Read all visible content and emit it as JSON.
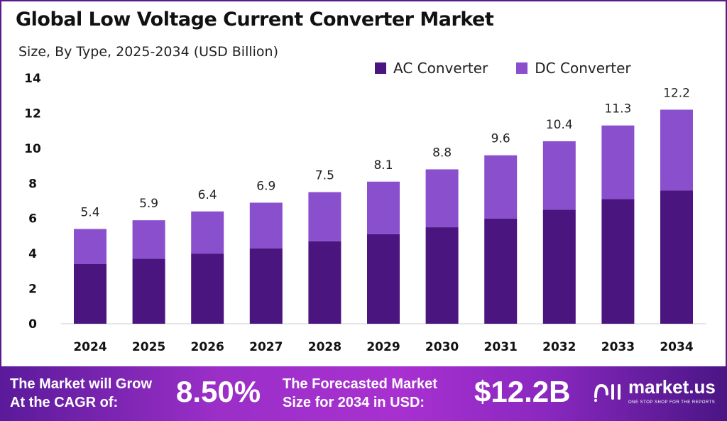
{
  "chart_data": {
    "type": "bar",
    "stacked": true,
    "title": "Global Low Voltage Current Converter Market",
    "subtitle": "Size, By Type, 2025-2034 (USD Billion)",
    "categories": [
      "2024",
      "2025",
      "2026",
      "2027",
      "2028",
      "2029",
      "2030",
      "2031",
      "2032",
      "2033",
      "2034"
    ],
    "series": [
      {
        "name": "AC Converter",
        "color": "#4b1580",
        "values": [
          3.4,
          3.7,
          4.0,
          4.3,
          4.7,
          5.1,
          5.5,
          6.0,
          6.5,
          7.1,
          7.6
        ]
      },
      {
        "name": "DC Converter",
        "color": "#8a4fcc",
        "values": [
          2.0,
          2.2,
          2.4,
          2.6,
          2.8,
          3.0,
          3.3,
          3.6,
          3.9,
          4.2,
          4.6
        ]
      }
    ],
    "totals": [
      "5.4",
      "5.9",
      "6.4",
      "6.9",
      "7.5",
      "8.1",
      "8.8",
      "9.6",
      "10.4",
      "11.3",
      "12.2"
    ],
    "ylim": [
      0,
      14
    ],
    "yticks": [
      "0",
      "2",
      "4",
      "6",
      "8",
      "10",
      "12",
      "14"
    ],
    "grid": false,
    "legend_position": "top-right",
    "xlabel": "",
    "ylabel": ""
  },
  "footer": {
    "cagr_label_line1": "The Market will Grow",
    "cagr_label_line2": "At the CAGR of:",
    "cagr_value": "8.50%",
    "forecast_label_line1": "The Forecasted Market",
    "forecast_label_line2": "Size for 2034 in USD:",
    "forecast_value": "$12.2B",
    "logo_name": "market.us",
    "logo_tagline": "ONE STOP SHOP FOR THE REPORTS"
  }
}
